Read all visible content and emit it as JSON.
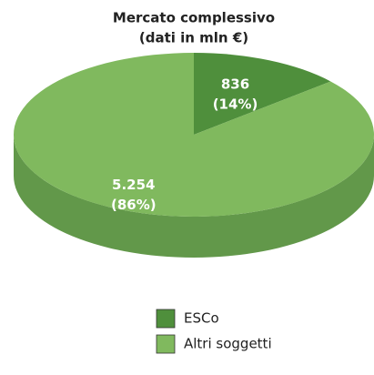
{
  "chart_data": {
    "type": "pie",
    "title": "Mercato complessivo",
    "subtitle": "(dati in mln €)",
    "categories": [
      "ESCo",
      "Altri soggetti"
    ],
    "values": [
      836,
      5254
    ],
    "value_labels": [
      "836",
      "5.254"
    ],
    "percent_labels": [
      "(14%)",
      "(86%)"
    ],
    "colors": [
      "#4f8f3c",
      "#80b95e"
    ],
    "side_colors": [
      "#3d7530",
      "#62984a"
    ],
    "legend": "bottom"
  }
}
